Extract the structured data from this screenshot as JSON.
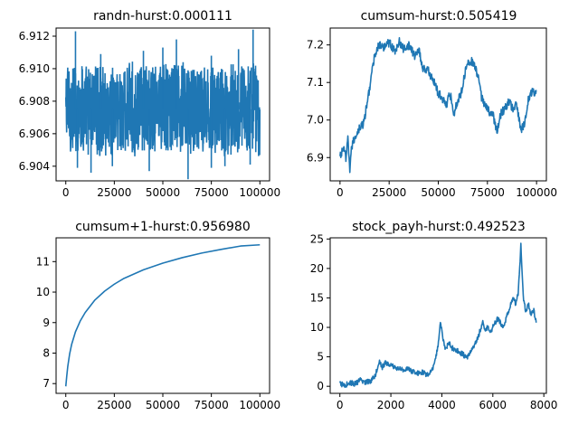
{
  "figure": {
    "line_color": "#1f77b4",
    "axis_color": "#000000",
    "background": "#ffffff"
  },
  "chart_data": [
    {
      "type": "line",
      "title": "randn-hurst:0.000111",
      "xlabel": "",
      "ylabel": "",
      "xlim": [
        -5000,
        105000
      ],
      "ylim": [
        6.9031,
        6.9125
      ],
      "xticks": [
        0,
        25000,
        50000,
        75000,
        100000
      ],
      "yticks": [
        6.904,
        6.906,
        6.908,
        6.91,
        6.912
      ],
      "ytick_decimals": 3,
      "grid": false,
      "band_range": [
        6.9045,
        6.9105
      ],
      "spikes_high": [
        [
          5000,
          6.9123
        ],
        [
          18000,
          6.9109
        ],
        [
          40000,
          6.9111
        ],
        [
          50000,
          6.9113
        ],
        [
          57000,
          6.9118
        ],
        [
          75000,
          6.9108
        ],
        [
          89000,
          6.9112
        ],
        [
          96500,
          6.9124
        ]
      ],
      "spikes_low": [
        [
          6000,
          6.9039
        ],
        [
          13000,
          6.9036
        ],
        [
          24000,
          6.904
        ],
        [
          43000,
          6.9037
        ],
        [
          63000,
          6.9032
        ],
        [
          75000,
          6.9039
        ],
        [
          82000,
          6.904
        ],
        [
          95000,
          6.9041
        ]
      ],
      "series": [
        {
          "values_note_points": 0,
          "x_range": [
            0,
            100000
          ]
        }
      ]
    },
    {
      "type": "line",
      "title": "cumsum-hurst:0.505419",
      "xlabel": "",
      "ylabel": "",
      "xlim": [
        -5000,
        105000
      ],
      "ylim": [
        6.838,
        7.245
      ],
      "xticks": [
        0,
        25000,
        50000,
        75000,
        100000
      ],
      "yticks": [
        6.9,
        7.0,
        7.1,
        7.2
      ],
      "ytick_decimals": 1,
      "grid": false,
      "series": [
        {
          "x": [
            0,
            2000,
            3000,
            4000,
            5000,
            6000,
            8000,
            10000,
            12000,
            14000,
            16000,
            18000,
            20000,
            22000,
            24000,
            26000,
            28000,
            30000,
            32000,
            35000,
            38000,
            40000,
            42000,
            45000,
            48000,
            50000,
            52000,
            54000,
            56000,
            58000,
            60000,
            62000,
            64000,
            66000,
            68000,
            70000,
            72000,
            74000,
            76000,
            78000,
            80000,
            82000,
            84000,
            86000,
            88000,
            90000,
            92000,
            94000,
            96000,
            98000,
            100000
          ],
          "y": [
            6.9,
            6.93,
            6.89,
            6.95,
            6.87,
            6.93,
            6.96,
            6.98,
            6.99,
            7.05,
            7.12,
            7.18,
            7.2,
            7.19,
            7.21,
            7.2,
            7.18,
            7.21,
            7.19,
            7.2,
            7.17,
            7.19,
            7.14,
            7.13,
            7.1,
            7.07,
            7.06,
            7.04,
            7.07,
            7.02,
            7.05,
            7.08,
            7.14,
            7.16,
            7.15,
            7.12,
            7.06,
            7.04,
            7.02,
            7.01,
            6.97,
            7.02,
            7.03,
            7.05,
            7.03,
            7.04,
            6.97,
            6.99,
            7.06,
            7.08,
            7.07
          ],
          "jitter": 0.012
        }
      ]
    },
    {
      "type": "line",
      "title": "cumsum+1-hurst:0.956980",
      "xlabel": "",
      "ylabel": "",
      "xlim": [
        -5000,
        105000
      ],
      "ylim": [
        6.68,
        11.78
      ],
      "xticks": [
        0,
        25000,
        50000,
        75000,
        100000
      ],
      "yticks": [
        7,
        8,
        9,
        10,
        11
      ],
      "ytick_decimals": 0,
      "grid": false,
      "series": [
        {
          "x": [
            0,
            500,
            1000,
            2000,
            3000,
            5000,
            7500,
            10000,
            15000,
            20000,
            25000,
            30000,
            40000,
            50000,
            60000,
            70000,
            80000,
            90000,
            100000
          ],
          "y": [
            6.91,
            7.25,
            7.55,
            7.98,
            8.28,
            8.7,
            9.06,
            9.33,
            9.74,
            10.03,
            10.26,
            10.45,
            10.73,
            10.95,
            11.13,
            11.28,
            11.4,
            11.51,
            11.55
          ],
          "jitter": 0
        }
      ]
    },
    {
      "type": "line",
      "title": "stock_payh-hurst:0.492523",
      "xlabel": "",
      "ylabel": "",
      "xlim": [
        -380,
        8100
      ],
      "ylim": [
        -1.2,
        25.2
      ],
      "xticks": [
        0,
        2000,
        4000,
        6000,
        8000
      ],
      "yticks": [
        0,
        5,
        10,
        15,
        20,
        25
      ],
      "ytick_decimals": 0,
      "grid": false,
      "series": [
        {
          "x": [
            0,
            200,
            400,
            600,
            800,
            1000,
            1200,
            1400,
            1550,
            1650,
            1800,
            2000,
            2200,
            2400,
            2600,
            2800,
            3000,
            3200,
            3400,
            3600,
            3750,
            3850,
            3950,
            4050,
            4150,
            4250,
            4400,
            4600,
            4800,
            5000,
            5200,
            5400,
            5600,
            5700,
            5800,
            5900,
            6000,
            6200,
            6400,
            6600,
            6800,
            6900,
            7000,
            7050,
            7100,
            7150,
            7200,
            7300,
            7400,
            7500,
            7600,
            7700
          ],
          "y": [
            0.4,
            0.2,
            0.6,
            0.4,
            1.0,
            0.7,
            0.9,
            2.0,
            4.5,
            3.2,
            4.0,
            3.5,
            3.2,
            2.8,
            3.0,
            2.6,
            2.2,
            2.4,
            2.0,
            2.4,
            4.5,
            7.0,
            11.0,
            8.0,
            6.0,
            7.5,
            6.5,
            6.0,
            5.5,
            4.8,
            6.5,
            8.0,
            11.0,
            9.0,
            10.5,
            9.0,
            10.0,
            11.5,
            10.0,
            12.5,
            15.0,
            14.0,
            16.0,
            20.0,
            24.0,
            19.0,
            15.0,
            12.5,
            14.0,
            12.0,
            13.0,
            11.0
          ],
          "jitter": 0.45
        }
      ]
    }
  ]
}
